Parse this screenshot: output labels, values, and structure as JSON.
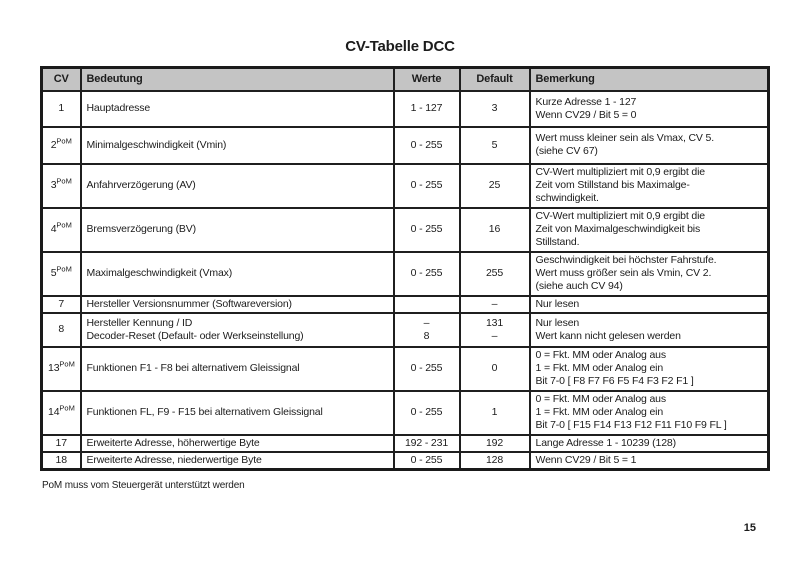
{
  "page": {
    "title": "CV-Tabelle DCC",
    "footnote": "PoM muss vom Steuergerät unterstützt werden",
    "page_number": "15"
  },
  "table": {
    "headers": [
      "CV",
      "Bedeutung",
      "Werte",
      "Default",
      "Bemerkung"
    ],
    "header_bg_color": "#c4c4c4",
    "border_color": "#1a1a1a",
    "rows": [
      {
        "cv": "1",
        "cv_sup": "",
        "bedeutung": [
          "Hauptadresse"
        ],
        "werte": [
          "1 - 127"
        ],
        "default": [
          "3"
        ],
        "bemerkung": [
          "Kurze Adresse 1 - 127",
          "Wenn CV29 / Bit 5 = 0"
        ]
      },
      {
        "cv": "2",
        "cv_sup": "PoM",
        "bedeutung": [
          "Minimalgeschwindigkeit (Vmin)"
        ],
        "werte": [
          "0 - 255"
        ],
        "default": [
          "5"
        ],
        "bemerkung": [
          "Wert muss kleiner sein als Vmax, CV 5.",
          "(siehe CV 67)"
        ]
      },
      {
        "cv": "3",
        "cv_sup": "PoM",
        "bedeutung": [
          "Anfahrverzögerung (AV)"
        ],
        "werte": [
          "0 - 255"
        ],
        "default": [
          "25"
        ],
        "bemerkung": [
          "CV-Wert multipliziert mit 0,9 ergibt die",
          "Zeit vom Stillstand bis Maximalge-",
          "schwindigkeit."
        ]
      },
      {
        "cv": "4",
        "cv_sup": "PoM",
        "bedeutung": [
          "Bremsverzögerung (BV)"
        ],
        "werte": [
          "0 - 255"
        ],
        "default": [
          "16"
        ],
        "bemerkung": [
          "CV-Wert multipliziert mit 0,9 ergibt die",
          "Zeit von Maximalgeschwindigkeit bis",
          "Stillstand."
        ]
      },
      {
        "cv": "5",
        "cv_sup": "PoM",
        "bedeutung": [
          "Maximalgeschwindigkeit (Vmax)"
        ],
        "werte": [
          "0 - 255"
        ],
        "default": [
          "255"
        ],
        "bemerkung": [
          "Geschwindigkeit bei höchster Fahrstufe.",
          "Wert muss größer sein als Vmin, CV 2.",
          "(siehe auch CV 94)"
        ]
      },
      {
        "cv": "7",
        "cv_sup": "",
        "bedeutung": [
          "Hersteller Versionsnummer (Softwareversion)"
        ],
        "werte": [],
        "default": [
          "–"
        ],
        "bemerkung": [
          "Nur lesen"
        ]
      },
      {
        "cv": "8",
        "cv_sup": "",
        "bedeutung": [
          "Hersteller Kennung / ID",
          "Decoder-Reset (Default- oder Werkseinstellung)"
        ],
        "werte": [
          "–",
          "8"
        ],
        "default": [
          "131",
          "–"
        ],
        "bemerkung": [
          "Nur lesen",
          "Wert kann nicht gelesen werden"
        ]
      },
      {
        "cv": "13",
        "cv_sup": "PoM",
        "bedeutung": [
          "Funktionen F1 - F8 bei alternativem Gleissignal"
        ],
        "werte": [
          "0 - 255"
        ],
        "default": [
          "0"
        ],
        "bemerkung": [
          "0 = Fkt. MM oder Analog aus",
          "1 = Fkt. MM oder Analog ein",
          "Bit 7-0 [ F8 F7 F6 F5 F4 F3 F2 F1 ]"
        ]
      },
      {
        "cv": "14",
        "cv_sup": "PoM",
        "bedeutung": [
          "Funktionen FL, F9 - F15 bei alternativem Gleissignal"
        ],
        "werte": [
          "0 - 255"
        ],
        "default": [
          "1"
        ],
        "bemerkung": [
          "0 = Fkt. MM oder Analog aus",
          "1 = Fkt. MM oder Analog ein",
          "Bit 7-0 [ F15 F14 F13 F12 F11 F10 F9 FL ]"
        ]
      },
      {
        "cv": "17",
        "cv_sup": "",
        "bedeutung": [
          "Erweiterte Adresse, höherwertige Byte"
        ],
        "werte": [
          "192 - 231"
        ],
        "default": [
          "192"
        ],
        "bemerkung": [
          "Lange Adresse 1 - 10239 (128)"
        ]
      },
      {
        "cv": "18",
        "cv_sup": "",
        "bedeutung": [
          "Erweiterte Adresse, niederwertige Byte"
        ],
        "werte": [
          "0 - 255"
        ],
        "default": [
          "128"
        ],
        "bemerkung": [
          "Wenn CV29 / Bit 5 = 1"
        ]
      }
    ]
  }
}
